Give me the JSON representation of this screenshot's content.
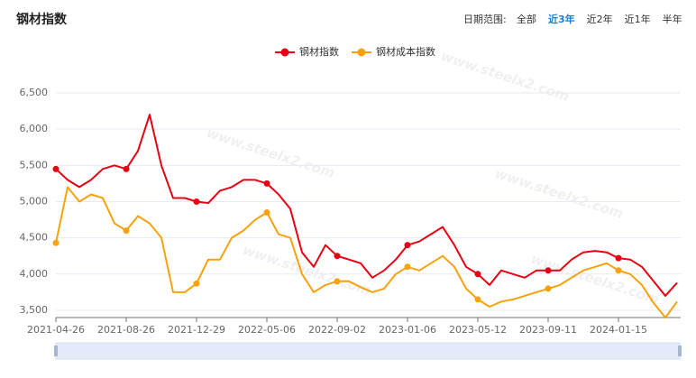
{
  "header": {
    "title": "钢材指数",
    "range_label": "日期范围:",
    "options": [
      "全部",
      "近3年",
      "近2年",
      "近1年",
      "半年"
    ],
    "active_option": 1
  },
  "chart_data": {
    "type": "line",
    "watermark": "www.steelx2.com",
    "categories": [
      "2021-04-26",
      null,
      null,
      null,
      null,
      null,
      "2021-08-26",
      null,
      null,
      null,
      null,
      null,
      "2021-12-29",
      null,
      null,
      null,
      null,
      null,
      "2022-05-06",
      null,
      null,
      null,
      null,
      null,
      "2022-09-02",
      null,
      null,
      null,
      null,
      null,
      "2023-01-06",
      null,
      null,
      null,
      null,
      null,
      "2023-05-12",
      null,
      null,
      null,
      null,
      null,
      "2023-09-11",
      null,
      null,
      null,
      null,
      null,
      "2024-01-15",
      null,
      null,
      null,
      null,
      null
    ],
    "series": [
      {
        "name": "钢材指数",
        "color": "#e60012",
        "values": [
          5450,
          5300,
          5200,
          5300,
          5450,
          5500,
          5450,
          5700,
          6200,
          5500,
          5050,
          5050,
          5000,
          4980,
          5150,
          5200,
          5300,
          5300,
          5250,
          5100,
          4900,
          4300,
          4100,
          4400,
          4250,
          4200,
          4150,
          3950,
          4050,
          4200,
          4400,
          4450,
          4550,
          4650,
          4400,
          4100,
          4000,
          3850,
          4050,
          4000,
          3950,
          4050,
          4050,
          4050,
          4200,
          4300,
          4320,
          4300,
          4220,
          4200,
          4100,
          3900,
          3700,
          3880
        ]
      },
      {
        "name": "钢材成本指数",
        "color": "#f7a20b",
        "values": [
          4430,
          5200,
          5000,
          5100,
          5050,
          4700,
          4600,
          4800,
          4700,
          4500,
          3750,
          3750,
          3870,
          4200,
          4200,
          4500,
          4600,
          4750,
          4850,
          4550,
          4500,
          4000,
          3750,
          3850,
          3900,
          3900,
          3820,
          3750,
          3800,
          4000,
          4100,
          4050,
          4150,
          4250,
          4100,
          3800,
          3650,
          3550,
          3620,
          3650,
          3700,
          3750,
          3800,
          3850,
          3950,
          4050,
          4100,
          4150,
          4050,
          4000,
          3850,
          3600,
          3400,
          3620
        ]
      }
    ],
    "ylim": [
      3400,
      6500
    ],
    "yticks": [
      {
        "value": 3500,
        "label": "3,500"
      },
      {
        "value": 4000,
        "label": "4,000"
      },
      {
        "value": 4500,
        "label": "4,500"
      },
      {
        "value": 5000,
        "label": "5,000"
      },
      {
        "value": 5500,
        "label": "5,500"
      },
      {
        "value": 6000,
        "label": "6,000"
      },
      {
        "value": 6500,
        "label": "6,500"
      }
    ],
    "grid": true
  }
}
